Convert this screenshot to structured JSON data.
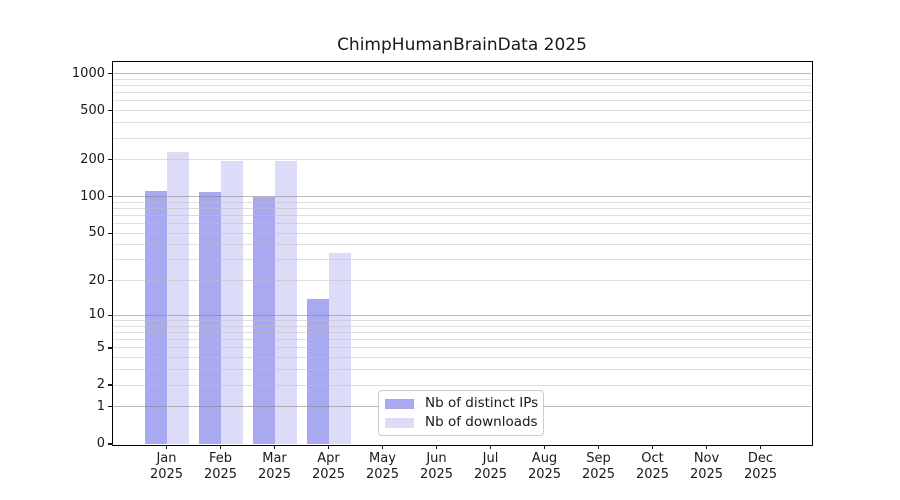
{
  "chart_data": {
    "type": "bar",
    "title": "ChimpHumanBrainData 2025",
    "categories": [
      "Jan 2025",
      "Feb 2025",
      "Mar 2025",
      "Apr 2025",
      "May 2025",
      "Jun 2025",
      "Jul 2025",
      "Aug 2025",
      "Sep 2025",
      "Oct 2025",
      "Nov 2025",
      "Dec 2025"
    ],
    "series": [
      {
        "name": "Nb of distinct IPs",
        "color": "#a9a9f2",
        "values": [
          112,
          108,
          100,
          14,
          0,
          0,
          0,
          0,
          0,
          0,
          0,
          0
        ]
      },
      {
        "name": "Nb of downloads",
        "color": "#dcdcf9",
        "values": [
          230,
          196,
          195,
          34,
          0,
          0,
          0,
          0,
          0,
          0,
          0,
          0
        ]
      }
    ],
    "y_axis": {
      "scale": "log(1+x)",
      "tick_labels": [
        0,
        1,
        2,
        5,
        10,
        20,
        50,
        100,
        200,
        500,
        1000
      ],
      "range": [
        0,
        1240
      ]
    },
    "grid": {
      "major": [
        1,
        10,
        100,
        1000
      ],
      "minor": [
        2,
        3,
        4,
        5,
        6,
        7,
        8,
        9,
        20,
        30,
        40,
        50,
        60,
        70,
        80,
        90,
        200,
        300,
        400,
        500,
        600,
        700,
        800,
        900
      ]
    },
    "legend": {
      "location": "lower center",
      "entries": [
        "Nb of distinct IPs",
        "Nb of downloads"
      ]
    }
  }
}
